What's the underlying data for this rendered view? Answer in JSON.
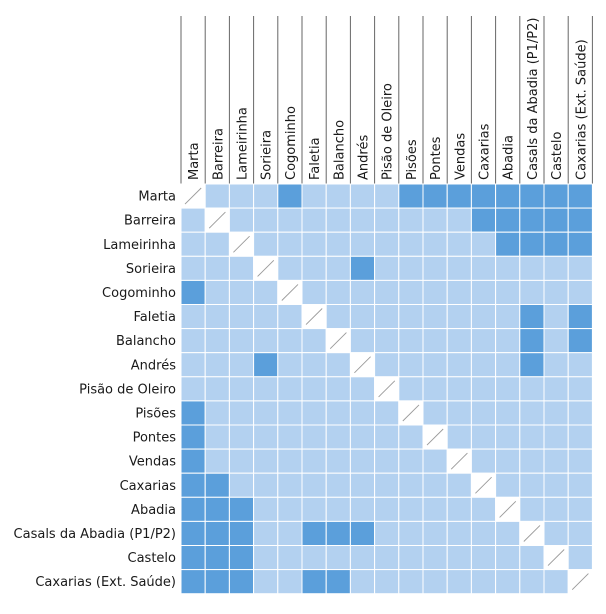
{
  "colors": {
    "light": "#b3d1f0",
    "dark": "#5b9fdb",
    "diagonal": "#ffffff",
    "grid": "#ffffff",
    "divider": "#666666"
  },
  "labels": [
    "Marta",
    "Barreira",
    "Lameirinha",
    "Sorieira",
    "Cogominho",
    "Faletia",
    "Balancho",
    "Andrés",
    "Pisão de Oleiro",
    "Pisões",
    "Pontes",
    "Vendas",
    "Caxarias",
    "Abadia",
    "Casals da Abadia (P1/P2)",
    "Castelo",
    "Caxarias (Ext. Saúde)"
  ],
  "matrix": [
    [
      2,
      0,
      0,
      0,
      1,
      0,
      0,
      0,
      0,
      1,
      1,
      1,
      1,
      1,
      1,
      1,
      1
    ],
    [
      0,
      2,
      0,
      0,
      0,
      0,
      0,
      0,
      0,
      0,
      0,
      0,
      1,
      1,
      1,
      1,
      1
    ],
    [
      0,
      0,
      2,
      0,
      0,
      0,
      0,
      0,
      0,
      0,
      0,
      0,
      0,
      1,
      1,
      1,
      1
    ],
    [
      0,
      0,
      0,
      2,
      0,
      0,
      0,
      1,
      0,
      0,
      0,
      0,
      0,
      0,
      0,
      0,
      0
    ],
    [
      1,
      0,
      0,
      0,
      2,
      0,
      0,
      0,
      0,
      0,
      0,
      0,
      0,
      0,
      0,
      0,
      0
    ],
    [
      0,
      0,
      0,
      0,
      0,
      2,
      0,
      0,
      0,
      0,
      0,
      0,
      0,
      0,
      1,
      0,
      1
    ],
    [
      0,
      0,
      0,
      0,
      0,
      0,
      2,
      0,
      0,
      0,
      0,
      0,
      0,
      0,
      1,
      0,
      1
    ],
    [
      0,
      0,
      0,
      1,
      0,
      0,
      0,
      2,
      0,
      0,
      0,
      0,
      0,
      0,
      1,
      0,
      0
    ],
    [
      0,
      0,
      0,
      0,
      0,
      0,
      0,
      0,
      2,
      0,
      0,
      0,
      0,
      0,
      0,
      0,
      0
    ],
    [
      1,
      0,
      0,
      0,
      0,
      0,
      0,
      0,
      0,
      2,
      0,
      0,
      0,
      0,
      0,
      0,
      0
    ],
    [
      1,
      0,
      0,
      0,
      0,
      0,
      0,
      0,
      0,
      0,
      2,
      0,
      0,
      0,
      0,
      0,
      0
    ],
    [
      1,
      0,
      0,
      0,
      0,
      0,
      0,
      0,
      0,
      0,
      0,
      2,
      0,
      0,
      0,
      0,
      0
    ],
    [
      1,
      1,
      0,
      0,
      0,
      0,
      0,
      0,
      0,
      0,
      0,
      0,
      2,
      0,
      0,
      0,
      0
    ],
    [
      1,
      1,
      1,
      0,
      0,
      0,
      0,
      0,
      0,
      0,
      0,
      0,
      0,
      2,
      0,
      0,
      0
    ],
    [
      1,
      1,
      1,
      0,
      0,
      1,
      1,
      1,
      0,
      0,
      0,
      0,
      0,
      0,
      2,
      0,
      0
    ],
    [
      1,
      1,
      1,
      0,
      0,
      0,
      0,
      0,
      0,
      0,
      0,
      0,
      0,
      0,
      0,
      2,
      0
    ],
    [
      1,
      1,
      1,
      0,
      0,
      1,
      1,
      0,
      0,
      0,
      0,
      0,
      0,
      0,
      0,
      0,
      2
    ]
  ]
}
